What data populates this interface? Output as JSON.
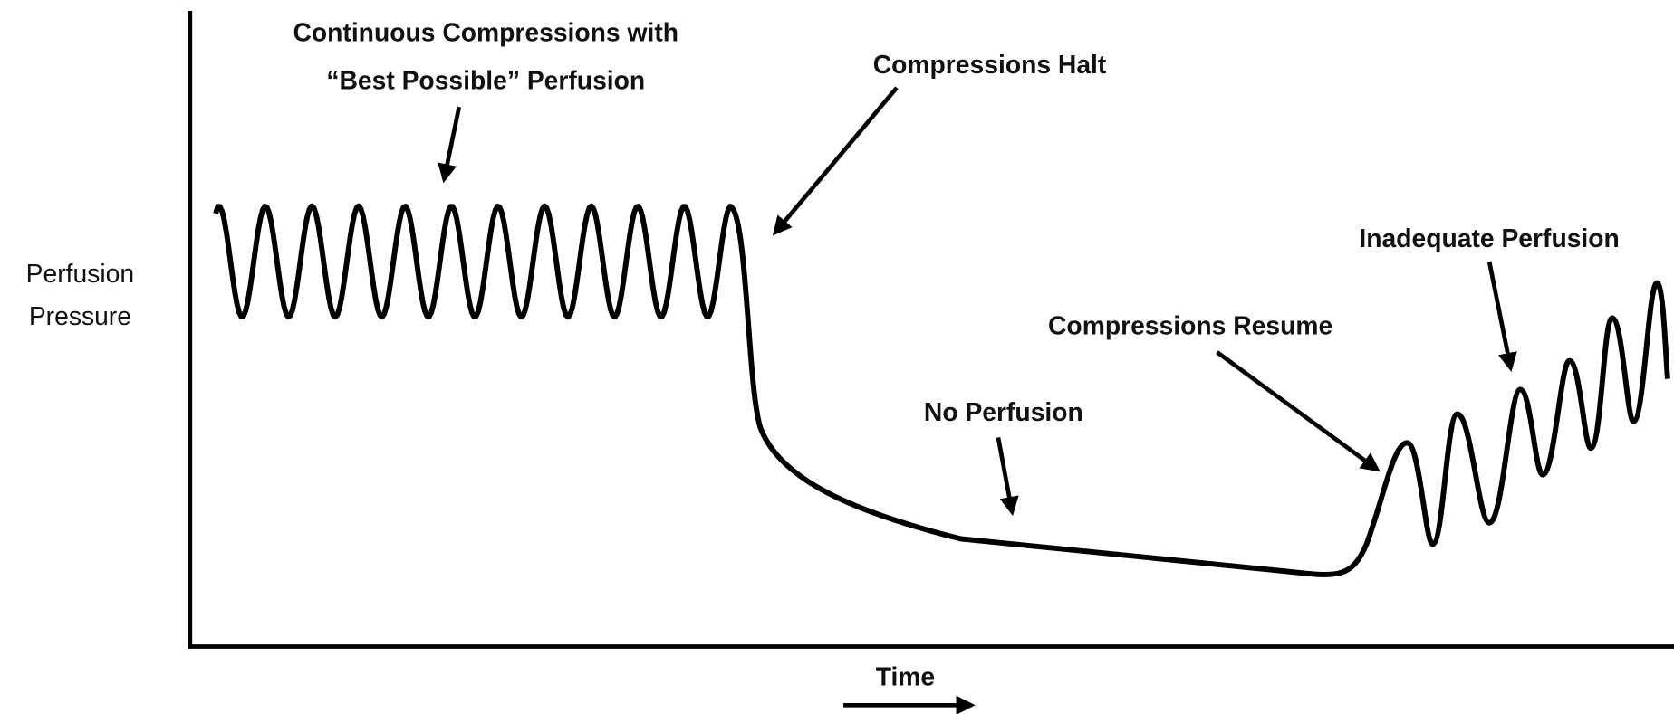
{
  "axes": {
    "y_label": [
      "Perfusion",
      "Pressure"
    ],
    "x_label": "Time"
  },
  "annotations": [
    {
      "lines": [
        "Continuous Compressions with",
        "“Best Possible” Perfusion"
      ]
    },
    {
      "lines": [
        "Compressions Halt"
      ]
    },
    {
      "lines": [
        "No Perfusion"
      ]
    },
    {
      "lines": [
        "Compressions Resume"
      ]
    },
    {
      "lines": [
        "Inadequate Perfusion"
      ]
    }
  ]
}
